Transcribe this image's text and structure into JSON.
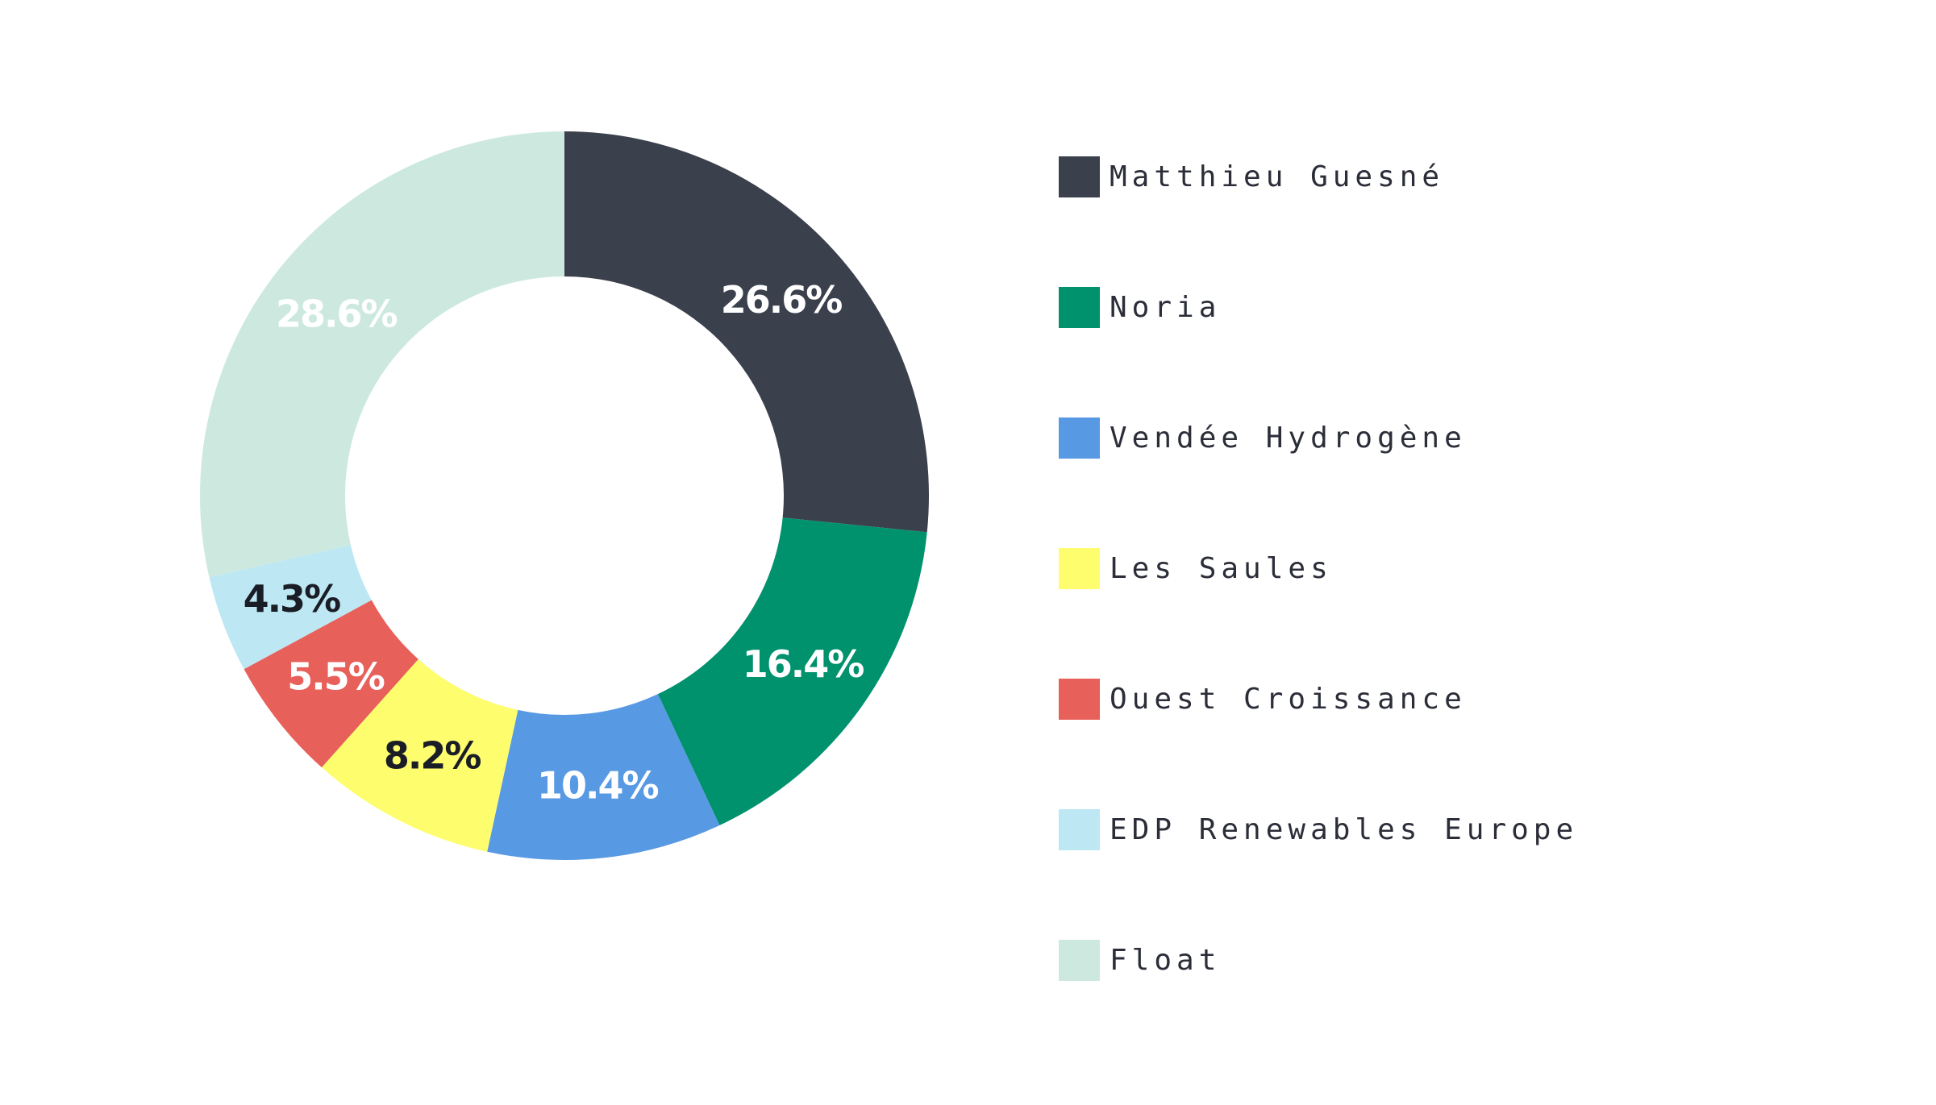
{
  "chart_data": {
    "type": "pie",
    "donut": true,
    "legend_position": "right",
    "slices": [
      {
        "name": "Matthieu Guesné",
        "value": 26.6,
        "label": "26.6%",
        "color": "#3b404d",
        "label_color": "#ffffff"
      },
      {
        "name": "Noria",
        "value": 16.4,
        "label": "16.4%",
        "color": "#00916d",
        "label_color": "#ffffff"
      },
      {
        "name": "Vendée Hydrogène",
        "value": 10.4,
        "label": "10.4%",
        "color": "#5899e3",
        "label_color": "#ffffff"
      },
      {
        "name": "Les Saules",
        "value": 8.2,
        "label": "8.2%",
        "color": "#fdfd6e",
        "label_color": "#1a1d26"
      },
      {
        "name": "Ouest Croissance",
        "value": 5.5,
        "label": "5.5%",
        "color": "#e8605a",
        "label_color": "#ffffff"
      },
      {
        "name": "EDP Renewables Europe",
        "value": 4.3,
        "label": "4.3%",
        "color": "#bde8f3",
        "label_color": "#1a1d26"
      },
      {
        "name": "Float",
        "value": 28.6,
        "label": "28.6%",
        "color": "#cde9df",
        "label_color": "#ffffff"
      }
    ]
  }
}
